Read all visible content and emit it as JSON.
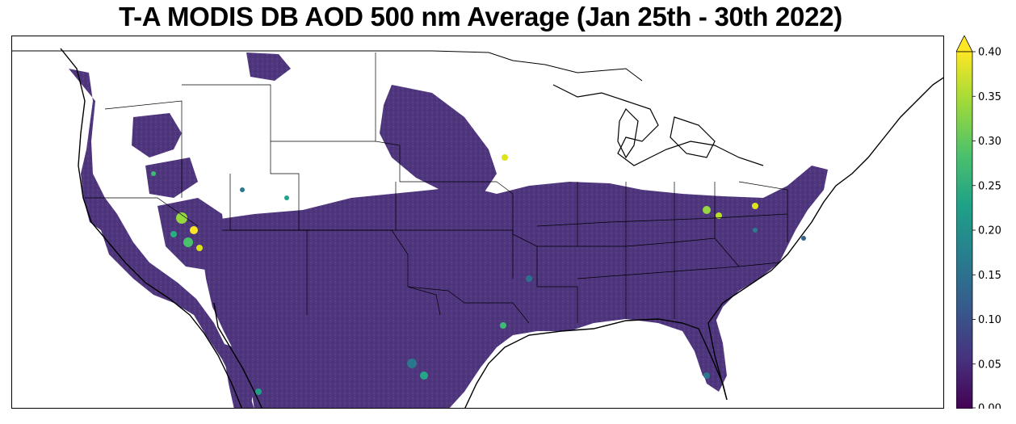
{
  "title": "T-A MODIS DB AOD 500 nm Average (Jan 25th - 30th 2022)",
  "colorbar": {
    "min": 0.0,
    "max": 0.4,
    "extend": "max",
    "ticks": [
      "0.00",
      "0.05",
      "0.10",
      "0.15",
      "0.20",
      "0.25",
      "0.30",
      "0.35",
      "0.40"
    ],
    "colormap": [
      "#440154",
      "#46327e",
      "#365c8d",
      "#277f8e",
      "#1fa187",
      "#4ac16d",
      "#a0da39",
      "#fde725"
    ]
  },
  "map": {
    "region": "Contiguous United States",
    "data_color": "#4b2d78",
    "background": "#ffffff",
    "borders": "#000000"
  }
}
